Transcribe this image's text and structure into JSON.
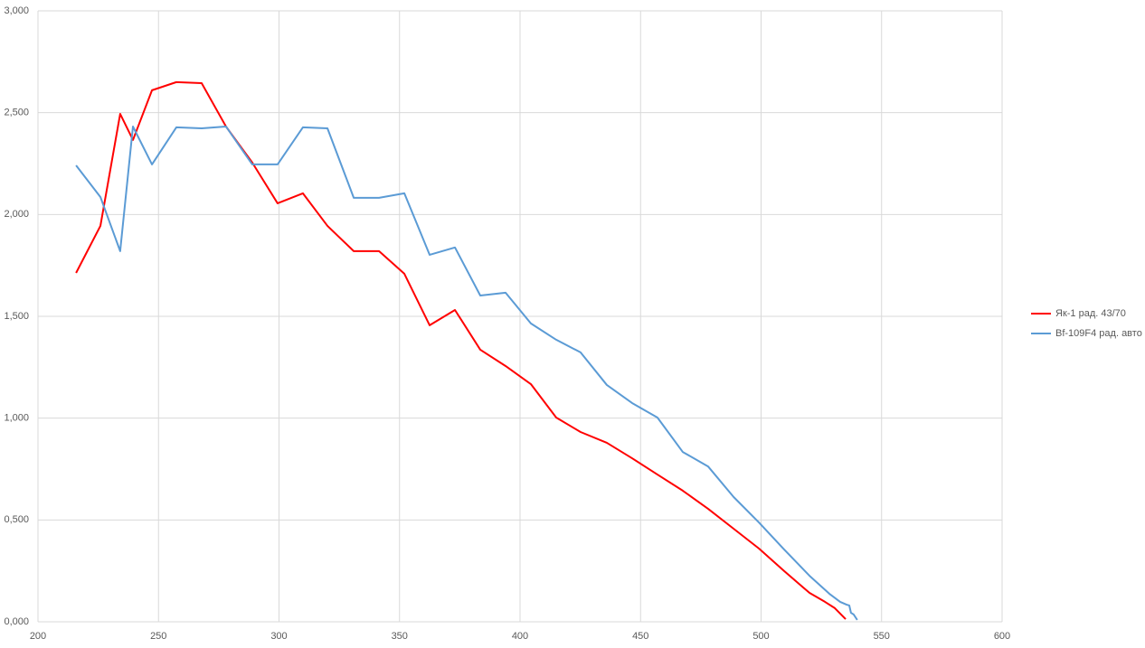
{
  "chart_data": {
    "type": "line",
    "xlim": [
      200,
      600
    ],
    "xticks": [
      200,
      250,
      300,
      350,
      400,
      450,
      500,
      550,
      600
    ],
    "ylim": [
      0,
      3
    ],
    "yticks": [
      {
        "value": 0,
        "label": "0,000"
      },
      {
        "value": 0.5,
        "label": "0,500"
      },
      {
        "value": 1,
        "label": "1,000"
      },
      {
        "value": 1.5,
        "label": "1,500"
      },
      {
        "value": 2,
        "label": "2,000"
      },
      {
        "value": 2.5,
        "label": "2,500"
      },
      {
        "value": 3,
        "label": "3,000"
      }
    ],
    "grid": true,
    "legend": "right",
    "series": [
      {
        "name": "Як-1 рад. 43/70",
        "color": "#ff0000",
        "x": [
          215.8,
          225.9,
          234.1,
          239.4,
          247.3,
          257.4,
          267.9,
          278.0,
          288.9,
          299.4,
          309.9,
          320.1,
          331.0,
          341.5,
          352.0,
          362.5,
          373.0,
          383.5,
          394.0,
          404.5,
          415.0,
          425.1,
          436.0,
          446.5,
          457.0,
          467.5,
          478.0,
          488.6,
          499.1,
          509.6,
          520.1,
          526.5,
          530.6,
          535.1
        ],
        "values": [
          1.713,
          1.944,
          2.494,
          2.366,
          2.61,
          2.65,
          2.645,
          2.432,
          2.255,
          2.055,
          2.104,
          1.944,
          1.82,
          1.82,
          1.709,
          1.456,
          1.531,
          1.336,
          1.256,
          1.167,
          1.003,
          0.932,
          0.879,
          0.803,
          0.723,
          0.644,
          0.555,
          0.457,
          0.36,
          0.249,
          0.142,
          0.098,
          0.067,
          0.013
        ]
      },
      {
        "name": "Bf-109F4 рад. авто",
        "color": "#5b9bd5",
        "x": [
          215.8,
          225.9,
          234.1,
          239.4,
          247.3,
          257.4,
          267.9,
          278.0,
          288.9,
          299.4,
          309.9,
          320.1,
          331.0,
          341.5,
          352.0,
          362.5,
          373.0,
          383.5,
          394.0,
          404.5,
          415.0,
          425.1,
          436.0,
          446.5,
          457.0,
          467.5,
          478.0,
          488.6,
          499.1,
          509.6,
          520.1,
          528.3,
          532.8,
          535.5,
          536.6,
          537.3,
          538.4,
          539.9
        ],
        "values": [
          2.241,
          2.086,
          1.82,
          2.432,
          2.246,
          2.428,
          2.423,
          2.432,
          2.246,
          2.246,
          2.428,
          2.423,
          2.082,
          2.082,
          2.104,
          1.802,
          1.838,
          1.602,
          1.616,
          1.465,
          1.385,
          1.323,
          1.163,
          1.074,
          1.003,
          0.834,
          0.763,
          0.613,
          0.488,
          0.355,
          0.226,
          0.138,
          0.098,
          0.084,
          0.08,
          0.044,
          0.036,
          0.009
        ]
      }
    ]
  }
}
